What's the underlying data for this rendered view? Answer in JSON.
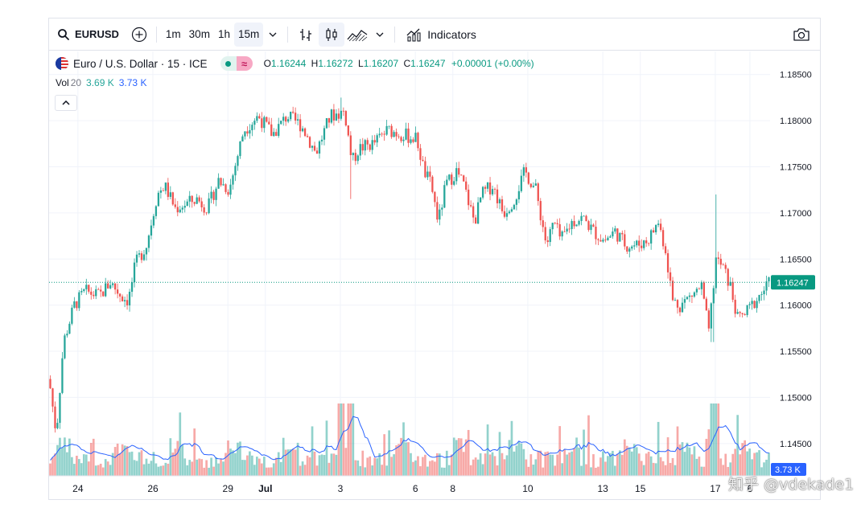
{
  "toolbar": {
    "symbol": "EURUSD",
    "intervals": [
      "1m",
      "30m",
      "1h",
      "15m"
    ],
    "active_interval": "15m",
    "indicators_label": "Indicators"
  },
  "legend": {
    "title": "Euro / U.S. Dollar · 15 · ICE",
    "o_label": "O",
    "o_value": "1.16244",
    "h_label": "H",
    "h_value": "1.16272",
    "l_label": "L",
    "l_value": "1.16207",
    "c_label": "C",
    "c_value": "1.16247",
    "change": "+0.00001 (+0.00%)"
  },
  "volume_legend": {
    "label": "Vol",
    "length": "20",
    "value": "3.69 K",
    "ma_value": "3.73 K"
  },
  "colors": {
    "up": "#26a69a",
    "down": "#ef5350",
    "ma": "#2962ff",
    "last_price_bg": "#089981"
  },
  "chart_data": {
    "type": "candlestick",
    "symbol": "EURUSD",
    "interval": "15",
    "price_axis_ticks": [
      "1.18500",
      "1.18000",
      "1.17500",
      "1.17000",
      "1.16500",
      "1.16000",
      "1.15500",
      "1.15000",
      "1.14500"
    ],
    "ylim": [
      1.1415,
      1.1875
    ],
    "last_price": 1.16247,
    "last_price_label": "1.16247",
    "volume_ma_label": "3.73 K",
    "x_ticks": [
      {
        "label": "24",
        "pos": 0.04
      },
      {
        "label": "26",
        "pos": 0.144
      },
      {
        "label": "29",
        "pos": 0.248
      },
      {
        "label": "Jul",
        "pos": 0.3,
        "bold": true
      },
      {
        "label": "3",
        "pos": 0.404
      },
      {
        "label": "6",
        "pos": 0.508
      },
      {
        "label": "8",
        "pos": 0.56
      },
      {
        "label": "10",
        "pos": 0.664
      },
      {
        "label": "13",
        "pos": 0.768
      },
      {
        "label": "15",
        "pos": 0.82
      },
      {
        "label": "17",
        "pos": 0.924
      },
      {
        "label": "6",
        "pos": 0.972
      }
    ],
    "close_path": [
      [
        0.0,
        1.152
      ],
      [
        0.01,
        1.146
      ],
      [
        0.02,
        1.156
      ],
      [
        0.035,
        1.16
      ],
      [
        0.05,
        1.1615
      ],
      [
        0.07,
        1.161
      ],
      [
        0.085,
        1.1625
      ],
      [
        0.1,
        1.161
      ],
      [
        0.11,
        1.1605
      ],
      [
        0.12,
        1.1645
      ],
      [
        0.135,
        1.1665
      ],
      [
        0.15,
        1.172
      ],
      [
        0.16,
        1.173
      ],
      [
        0.175,
        1.1705
      ],
      [
        0.19,
        1.171
      ],
      [
        0.205,
        1.1715
      ],
      [
        0.22,
        1.1705
      ],
      [
        0.235,
        1.1735
      ],
      [
        0.25,
        1.1725
      ],
      [
        0.27,
        1.179
      ],
      [
        0.29,
        1.1805
      ],
      [
        0.31,
        1.1785
      ],
      [
        0.33,
        1.1805
      ],
      [
        0.35,
        1.1795
      ],
      [
        0.37,
        1.1765
      ],
      [
        0.39,
        1.1805
      ],
      [
        0.41,
        1.181
      ],
      [
        0.42,
        1.1755
      ],
      [
        0.43,
        1.177
      ],
      [
        0.45,
        1.1775
      ],
      [
        0.47,
        1.179
      ],
      [
        0.49,
        1.1785
      ],
      [
        0.51,
        1.178
      ],
      [
        0.52,
        1.1745
      ],
      [
        0.53,
        1.173
      ],
      [
        0.54,
        1.169
      ],
      [
        0.55,
        1.173
      ],
      [
        0.565,
        1.1745
      ],
      [
        0.575,
        1.173
      ],
      [
        0.59,
        1.169
      ],
      [
        0.6,
        1.172
      ],
      [
        0.615,
        1.173
      ],
      [
        0.63,
        1.17
      ],
      [
        0.645,
        1.1715
      ],
      [
        0.66,
        1.1745
      ],
      [
        0.675,
        1.1725
      ],
      [
        0.69,
        1.1665
      ],
      [
        0.7,
        1.169
      ],
      [
        0.71,
        1.167
      ],
      [
        0.725,
        1.169
      ],
      [
        0.74,
        1.1695
      ],
      [
        0.755,
        1.168
      ],
      [
        0.77,
        1.167
      ],
      [
        0.785,
        1.168
      ],
      [
        0.8,
        1.1665
      ],
      [
        0.815,
        1.1665
      ],
      [
        0.83,
        1.167
      ],
      [
        0.845,
        1.169
      ],
      [
        0.855,
        1.166
      ],
      [
        0.865,
        1.1605
      ],
      [
        0.875,
        1.16
      ],
      [
        0.89,
        1.161
      ],
      [
        0.905,
        1.162
      ],
      [
        0.915,
        1.157
      ],
      [
        0.925,
        1.165
      ],
      [
        0.935,
        1.164
      ],
      [
        0.945,
        1.162
      ],
      [
        0.955,
        1.1585
      ],
      [
        0.965,
        1.159
      ],
      [
        0.975,
        1.16
      ],
      [
        0.99,
        1.1615
      ],
      [
        1.0,
        1.16247
      ]
    ],
    "spikes": [
      {
        "pos": 0.405,
        "high": 1.1825
      },
      {
        "pos": 0.925,
        "high": 1.172
      },
      {
        "pos": 0.92,
        "low": 1.156
      },
      {
        "pos": 0.418,
        "low": 1.1715
      }
    ]
  },
  "watermark": "知乎 @vdekade1"
}
